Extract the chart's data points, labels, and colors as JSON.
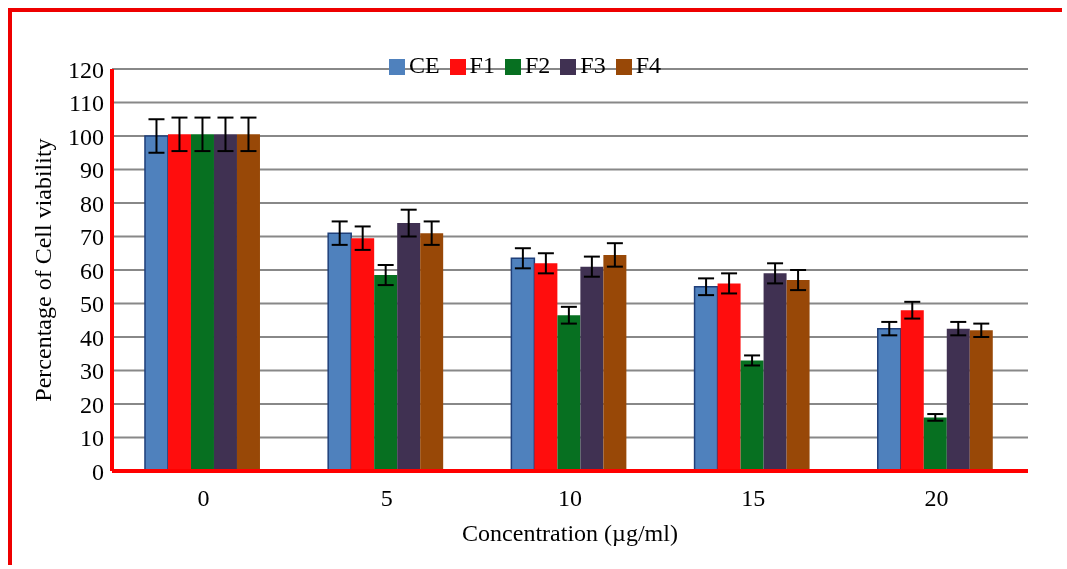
{
  "chart_data": {
    "type": "bar",
    "xlabel": "Concentration (µg/ml)",
    "ylabel": "Percentage of Cell viability",
    "categories": [
      "0",
      "5",
      "10",
      "15",
      "20"
    ],
    "series": [
      {
        "name": "CE",
        "color": "#4f81bd",
        "values": [
          100,
          71,
          63.5,
          55,
          42.5
        ],
        "errors": [
          5,
          3.5,
          3,
          2.5,
          2
        ]
      },
      {
        "name": "F1",
        "color": "#ff0d0d",
        "values": [
          100.5,
          69.5,
          62,
          56,
          48
        ],
        "errors": [
          5,
          3.5,
          3,
          3,
          2.5
        ]
      },
      {
        "name": "F2",
        "color": "#077021",
        "values": [
          100.5,
          58.5,
          46.5,
          33,
          16
        ],
        "errors": [
          5,
          3,
          2.5,
          1.5,
          1
        ]
      },
      {
        "name": "F3",
        "color": "#403152",
        "values": [
          100.5,
          74,
          61,
          59,
          42.5
        ],
        "errors": [
          5,
          4,
          3,
          3,
          2
        ]
      },
      {
        "name": "F4",
        "color": "#984807",
        "values": [
          100.5,
          71,
          64.5,
          57,
          42
        ],
        "errors": [
          5,
          3.5,
          3.5,
          3,
          2
        ]
      }
    ],
    "ylim": [
      0,
      120
    ],
    "yticks": [
      0,
      10,
      20,
      30,
      40,
      50,
      60,
      70,
      80,
      90,
      100,
      110,
      120
    ],
    "grid": "y",
    "legend": "top"
  }
}
